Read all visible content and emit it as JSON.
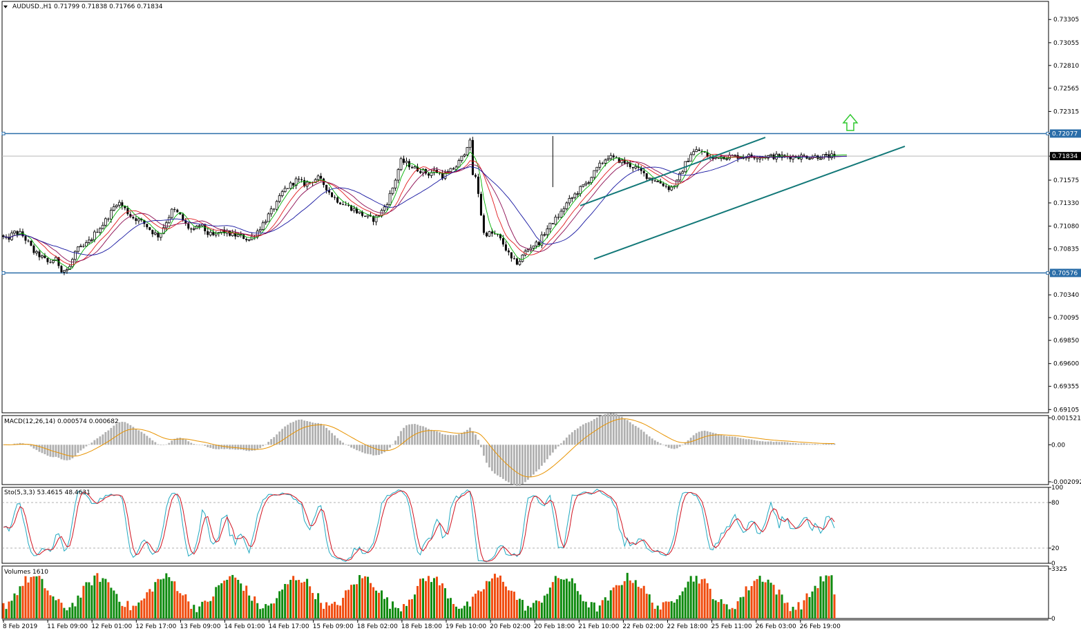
{
  "window": {
    "symbol_header": "AUDUSD.,H1  0.71799 0.71838 0.71766 0.71834"
  },
  "colors": {
    "bull": "#000000",
    "bear": "#000000",
    "ma_fast": "#00b000",
    "ma_mid": "#e0191c",
    "ma_slow": "#8b0a50",
    "ma_slowest": "#1414a0",
    "channel": "#127878",
    "hline": "#2a6da8",
    "arrow": "#2fc82f",
    "macd_hist": "#b0b0b0",
    "macd_signal": "#e89300",
    "sto_main": "#20a8c0",
    "sto_signal": "#d0111e",
    "vol_up": "#0e8a0e",
    "vol_down": "#f04a0c"
  },
  "chart_data": [
    {
      "type": "candlestick",
      "name": "price",
      "price_labels": [
        "0.73305",
        "0.73055",
        "0.72810",
        "0.72565",
        "0.72315",
        "0.72077",
        "0.71834",
        "0.71575",
        "0.71330",
        "0.71080",
        "0.70835",
        "0.70576",
        "0.70340",
        "0.70095",
        "0.69850",
        "0.69600",
        "0.69355",
        "0.69105"
      ],
      "price_levels": [
        0.73305,
        0.73055,
        0.7281,
        0.72565,
        0.72315,
        0.72077,
        0.71834,
        0.71575,
        0.7133,
        0.7108,
        0.70835,
        0.70576,
        0.7034,
        0.70095,
        0.6985,
        0.696,
        0.69355,
        0.69105
      ],
      "ylim": [
        0.6907,
        0.735
      ],
      "time_labels": [
        "8 Feb 2019",
        "11 Feb 09:00",
        "12 Feb 01:00",
        "12 Feb 17:00",
        "13 Feb 09:00",
        "14 Feb 01:00",
        "14 Feb 17:00",
        "15 Feb 09:00",
        "18 Feb 02:00",
        "18 Feb 18:00",
        "19 Feb 10:00",
        "20 Feb 02:00",
        "20 Feb 18:00",
        "21 Feb 10:00",
        "22 Feb 02:00",
        "22 Feb 18:00",
        "25 Feb 11:00",
        "26 Feb 03:00",
        "26 Feb 19:00"
      ],
      "bars": 302,
      "close_path": [
        [
          0,
          0.7098
        ],
        [
          10,
          0.7093
        ],
        [
          20,
          0.7101
        ],
        [
          30,
          0.71
        ],
        [
          40,
          0.7091
        ],
        [
          50,
          0.7079
        ],
        [
          60,
          0.7075
        ],
        [
          70,
          0.7068
        ],
        [
          80,
          0.7073
        ],
        [
          90,
          0.706
        ],
        [
          100,
          0.7062
        ],
        [
          110,
          0.7082
        ],
        [
          120,
          0.7085
        ],
        [
          130,
          0.7092
        ],
        [
          140,
          0.7103
        ],
        [
          150,
          0.7111
        ],
        [
          160,
          0.7122
        ],
        [
          170,
          0.7135
        ],
        [
          180,
          0.7127
        ],
        [
          190,
          0.7118
        ],
        [
          200,
          0.7115
        ],
        [
          210,
          0.711
        ],
        [
          220,
          0.7102
        ],
        [
          230,
          0.7097
        ],
        [
          240,
          0.7112
        ],
        [
          250,
          0.7126
        ],
        [
          260,
          0.712
        ],
        [
          270,
          0.7108
        ],
        [
          280,
          0.7102
        ],
        [
          290,
          0.711
        ],
        [
          300,
          0.71
        ],
        [
          310,
          0.7097
        ],
        [
          320,
          0.7103
        ],
        [
          330,
          0.71
        ],
        [
          340,
          0.7098
        ],
        [
          350,
          0.7097
        ],
        [
          360,
          0.7093
        ],
        [
          370,
          0.71
        ],
        [
          380,
          0.711
        ],
        [
          390,
          0.7121
        ],
        [
          400,
          0.7131
        ],
        [
          410,
          0.7146
        ],
        [
          420,
          0.7152
        ],
        [
          430,
          0.7158
        ],
        [
          440,
          0.7153
        ],
        [
          450,
          0.7156
        ],
        [
          460,
          0.716
        ],
        [
          470,
          0.7152
        ],
        [
          480,
          0.7141
        ],
        [
          490,
          0.7135
        ],
        [
          500,
          0.7131
        ],
        [
          510,
          0.7127
        ],
        [
          520,
          0.7122
        ],
        [
          530,
          0.7118
        ],
        [
          540,
          0.7115
        ],
        [
          550,
          0.7121
        ],
        [
          560,
          0.7133
        ],
        [
          570,
          0.7152
        ],
        [
          580,
          0.7178
        ],
        [
          590,
          0.7175
        ],
        [
          600,
          0.717
        ],
        [
          610,
          0.7168
        ],
        [
          620,
          0.7164
        ],
        [
          630,
          0.7168
        ],
        [
          640,
          0.7162
        ],
        [
          650,
          0.7166
        ],
        [
          660,
          0.7172
        ],
        [
          670,
          0.7183
        ],
        [
          680,
          0.7202
        ],
        [
          684,
          0.7164
        ],
        [
          690,
          0.7158
        ],
        [
          700,
          0.71
        ],
        [
          710,
          0.71
        ],
        [
          720,
          0.7098
        ],
        [
          730,
          0.7087
        ],
        [
          740,
          0.7072
        ],
        [
          750,
          0.7068
        ],
        [
          760,
          0.708
        ],
        [
          770,
          0.7087
        ],
        [
          780,
          0.709
        ],
        [
          790,
          0.7103
        ],
        [
          800,
          0.7112
        ],
        [
          810,
          0.712
        ],
        [
          820,
          0.7132
        ],
        [
          830,
          0.714
        ],
        [
          840,
          0.7148
        ],
        [
          850,
          0.7155
        ],
        [
          860,
          0.7165
        ],
        [
          870,
          0.7175
        ],
        [
          880,
          0.7183
        ],
        [
          890,
          0.718
        ],
        [
          900,
          0.7178
        ],
        [
          910,
          0.7174
        ],
        [
          920,
          0.7171
        ],
        [
          930,
          0.7165
        ],
        [
          940,
          0.716
        ],
        [
          950,
          0.7157
        ],
        [
          960,
          0.7153
        ],
        [
          970,
          0.7148
        ],
        [
          980,
          0.7155
        ],
        [
          990,
          0.7172
        ],
        [
          1000,
          0.7186
        ],
        [
          1010,
          0.719
        ],
        [
          1020,
          0.7186
        ],
        [
          1030,
          0.718
        ],
        [
          1040,
          0.7183
        ]
      ],
      "horizontal_lines": [
        0.72077,
        0.70576
      ],
      "current_price": 0.71834,
      "channel_lines": [
        {
          "x0": 840,
          "y0": 0.713,
          "x1": 1108,
          "y1": 0.72035
        },
        {
          "x0": 860,
          "y0": 0.70725,
          "x1": 1310,
          "y1": 0.7194
        }
      ]
    },
    {
      "type": "histogram+line",
      "name": "MACD",
      "label": "MACD(12,26,14) 0.000574 0.000682",
      "axis_labels": [
        "0.001521",
        "0.00",
        "-0.002092"
      ],
      "axis_levels": [
        0.001521,
        0.0,
        -0.002092
      ],
      "ylim": [
        -0.00225,
        0.00165
      ]
    },
    {
      "type": "line",
      "name": "Stochastic",
      "label": "Sto(5,3,3) 53.4615 48.4631",
      "axis_labels": [
        "100",
        "80",
        "20",
        "0"
      ],
      "axis_levels": [
        100,
        80,
        20,
        0
      ],
      "ylim": [
        0,
        100
      ]
    },
    {
      "type": "bar",
      "name": "Volumes",
      "label": "Volumes 1610",
      "axis_labels": [
        "3325",
        "0"
      ],
      "axis_levels": [
        3325,
        0
      ],
      "ylim": [
        0,
        3325
      ]
    }
  ]
}
